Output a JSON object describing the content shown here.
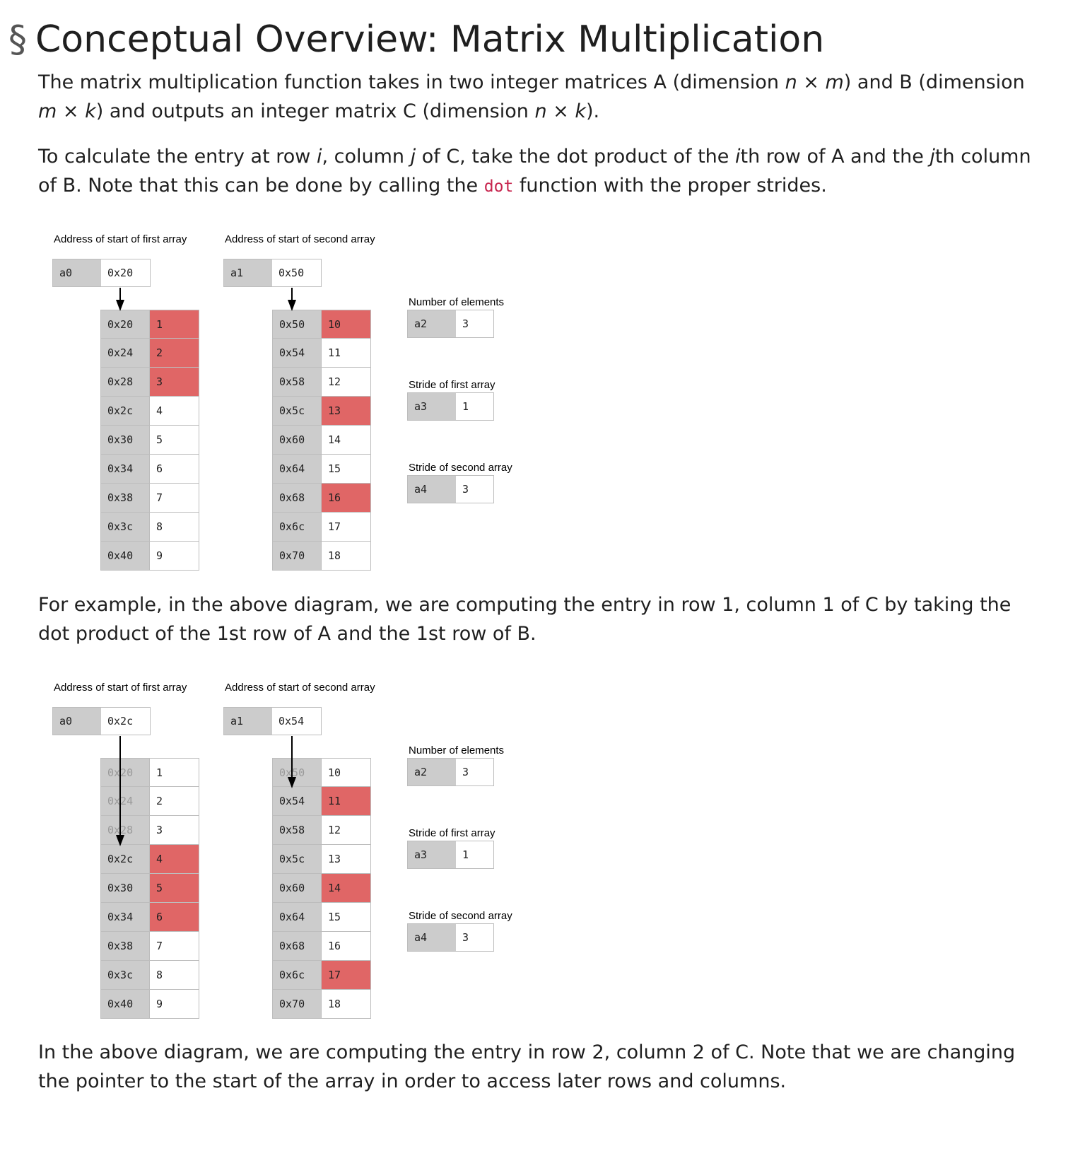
{
  "title": {
    "symbol": "§",
    "text": "Conceptual Overview: Matrix Multiplication"
  },
  "intro": {
    "p1": [
      "The matrix multiplication function takes in two integer matrices A (dimension ",
      "n",
      " × ",
      "m",
      ") and B (dimension ",
      "m",
      " × ",
      "k",
      ") and outputs an integer matrix C (dimension ",
      "n",
      " × ",
      "k",
      ")."
    ],
    "p2": [
      "To calculate the entry at row ",
      "i",
      ", column ",
      "j",
      " of C, take the dot product of the ",
      "i",
      "th row of A and the ",
      "j",
      "th column of B. Note that this can be done by calling the ",
      "dot",
      " function with the proper strides."
    ]
  },
  "figures": [
    {
      "first_array_label": "Address of start of first array",
      "second_array_label": "Address of start of second array",
      "a0": {
        "name": "a0",
        "value": "0x20"
      },
      "a1": {
        "name": "a1",
        "value": "0x50"
      },
      "num_elements_label": "Number of elements",
      "a2": {
        "name": "a2",
        "value": "3"
      },
      "stride_first_label": "Stride of first array",
      "a3": {
        "name": "a3",
        "value": "1"
      },
      "stride_second_label": "Stride of second array",
      "a4": {
        "name": "a4",
        "value": "3"
      },
      "array1": [
        {
          "addr": "0x20",
          "val": "1",
          "hl": true
        },
        {
          "addr": "0x24",
          "val": "2",
          "hl": true
        },
        {
          "addr": "0x28",
          "val": "3",
          "hl": true
        },
        {
          "addr": "0x2c",
          "val": "4",
          "hl": false
        },
        {
          "addr": "0x30",
          "val": "5",
          "hl": false
        },
        {
          "addr": "0x34",
          "val": "6",
          "hl": false
        },
        {
          "addr": "0x38",
          "val": "7",
          "hl": false
        },
        {
          "addr": "0x3c",
          "val": "8",
          "hl": false
        },
        {
          "addr": "0x40",
          "val": "9",
          "hl": false
        }
      ],
      "array2": [
        {
          "addr": "0x50",
          "val": "10",
          "hl": true
        },
        {
          "addr": "0x54",
          "val": "11",
          "hl": false
        },
        {
          "addr": "0x58",
          "val": "12",
          "hl": false
        },
        {
          "addr": "0x5c",
          "val": "13",
          "hl": true
        },
        {
          "addr": "0x60",
          "val": "14",
          "hl": false
        },
        {
          "addr": "0x64",
          "val": "15",
          "hl": false
        },
        {
          "addr": "0x68",
          "val": "16",
          "hl": true
        },
        {
          "addr": "0x6c",
          "val": "17",
          "hl": false
        },
        {
          "addr": "0x70",
          "val": "18",
          "hl": false
        }
      ],
      "arrow1_target_row": 0,
      "arrow2_target_row": 0,
      "dim_rows1": 0,
      "dim_rows2": 0
    },
    {
      "first_array_label": "Address of start of first array",
      "second_array_label": "Address of start of second array",
      "a0": {
        "name": "a0",
        "value": "0x2c"
      },
      "a1": {
        "name": "a1",
        "value": "0x54"
      },
      "num_elements_label": "Number of elements",
      "a2": {
        "name": "a2",
        "value": "3"
      },
      "stride_first_label": "Stride of first array",
      "a3": {
        "name": "a3",
        "value": "1"
      },
      "stride_second_label": "Stride of second array",
      "a4": {
        "name": "a4",
        "value": "3"
      },
      "array1": [
        {
          "addr": "0x20",
          "val": "1",
          "hl": false
        },
        {
          "addr": "0x24",
          "val": "2",
          "hl": false
        },
        {
          "addr": "0x28",
          "val": "3",
          "hl": false
        },
        {
          "addr": "0x2c",
          "val": "4",
          "hl": true
        },
        {
          "addr": "0x30",
          "val": "5",
          "hl": true
        },
        {
          "addr": "0x34",
          "val": "6",
          "hl": true
        },
        {
          "addr": "0x38",
          "val": "7",
          "hl": false
        },
        {
          "addr": "0x3c",
          "val": "8",
          "hl": false
        },
        {
          "addr": "0x40",
          "val": "9",
          "hl": false
        }
      ],
      "array2": [
        {
          "addr": "0x50",
          "val": "10",
          "hl": false
        },
        {
          "addr": "0x54",
          "val": "11",
          "hl": true
        },
        {
          "addr": "0x58",
          "val": "12",
          "hl": false
        },
        {
          "addr": "0x5c",
          "val": "13",
          "hl": false
        },
        {
          "addr": "0x60",
          "val": "14",
          "hl": true
        },
        {
          "addr": "0x64",
          "val": "15",
          "hl": false
        },
        {
          "addr": "0x68",
          "val": "16",
          "hl": false
        },
        {
          "addr": "0x6c",
          "val": "17",
          "hl": true
        },
        {
          "addr": "0x70",
          "val": "18",
          "hl": false
        }
      ],
      "arrow1_target_row": 3,
      "arrow2_target_row": 1,
      "dim_rows1": 3,
      "dim_rows2": 1
    }
  ],
  "example1": "For example, in the above diagram, we are computing the entry in row 1, column 1 of C by taking the dot product of the 1st row of A and the 1st row of B.",
  "example2": "In the above diagram, we are computing the entry in row 2, column 2 of C. Note that we are changing the pointer to the start of the array in order to access later rows and columns.",
  "colors": {
    "highlight": "#e06666",
    "register_name_bg": "#cccccc",
    "code_text": "#c7254e"
  }
}
